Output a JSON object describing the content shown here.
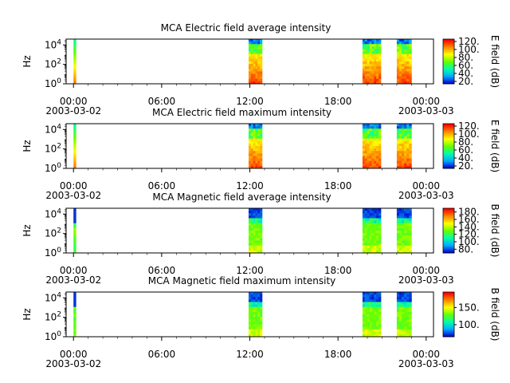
{
  "chart_data": [
    {
      "type": "heatmap",
      "title": "MCA  Electric field average intensity",
      "ylabel": "Hz",
      "y_scale": "log",
      "y_ticks": [
        "10^0",
        "10^2",
        "10^4"
      ],
      "x_ticks": [
        "00:00",
        "06:00",
        "12:00",
        "18:00",
        "00:00"
      ],
      "x_date_labels": [
        "2003-03-02",
        "2003-03-03"
      ],
      "x_range": [
        "2003-03-01T23:30",
        "2003-03-03T00:30"
      ],
      "colorbar_label": "E field (dB)",
      "colorbar_ticks": [
        "20.",
        "40.",
        "60.",
        "80.",
        "100.",
        "120."
      ],
      "colorbar_range": [
        14,
        126
      ],
      "data_segments": [
        {
          "start": "2003-03-02T00:00",
          "end": "2003-03-02T00:07"
        },
        {
          "start": "2003-03-02T11:55",
          "end": "2003-03-02T12:50"
        },
        {
          "start": "2003-03-02T19:40",
          "end": "2003-03-02T20:55"
        },
        {
          "start": "2003-03-02T22:00",
          "end": "2003-03-02T23:00"
        }
      ],
      "colormap": [
        "#0000cc",
        "#00aaff",
        "#00ffaa",
        "#66ff00",
        "#ffff00",
        "#ff8800",
        "#ff0000"
      ]
    },
    {
      "type": "heatmap",
      "title": "MCA  Electric field maximum intensity",
      "ylabel": "Hz",
      "y_scale": "log",
      "y_ticks": [
        "10^0",
        "10^2",
        "10^4"
      ],
      "x_ticks": [
        "00:00",
        "06:00",
        "12:00",
        "18:00",
        "00:00"
      ],
      "x_date_labels": [
        "2003-03-02",
        "2003-03-03"
      ],
      "x_range": [
        "2003-03-01T23:30",
        "2003-03-03T00:30"
      ],
      "colorbar_label": "E field (dB)",
      "colorbar_ticks": [
        "20.",
        "40.",
        "60.",
        "80.",
        "100.",
        "120."
      ],
      "colorbar_range": [
        14,
        126
      ],
      "data_segments": [
        {
          "start": "2003-03-02T00:00",
          "end": "2003-03-02T00:07"
        },
        {
          "start": "2003-03-02T11:55",
          "end": "2003-03-02T12:50"
        },
        {
          "start": "2003-03-02T19:40",
          "end": "2003-03-02T20:55"
        },
        {
          "start": "2003-03-02T22:00",
          "end": "2003-03-02T23:00"
        }
      ],
      "colormap": [
        "#0000cc",
        "#00aaff",
        "#00ffaa",
        "#66ff00",
        "#ffff00",
        "#ff8800",
        "#ff0000"
      ]
    },
    {
      "type": "heatmap",
      "title": "MCA  Magnetic field average intensity",
      "ylabel": "Hz",
      "y_scale": "log",
      "y_ticks": [
        "10^0",
        "10^2",
        "10^4"
      ],
      "x_ticks": [
        "00:00",
        "06:00",
        "12:00",
        "18:00",
        "00:00"
      ],
      "x_date_labels": [
        "2003-03-02",
        "2003-03-03"
      ],
      "x_range": [
        "2003-03-01T23:30",
        "2003-03-03T00:30"
      ],
      "colorbar_label": "B field (dB)",
      "colorbar_ticks": [
        "80.",
        "100.",
        "120.",
        "140.",
        "160.",
        "180."
      ],
      "colorbar_range": [
        70,
        190
      ],
      "data_segments": [
        {
          "start": "2003-03-02T00:00",
          "end": "2003-03-02T00:07"
        },
        {
          "start": "2003-03-02T11:55",
          "end": "2003-03-02T12:50"
        },
        {
          "start": "2003-03-02T19:40",
          "end": "2003-03-02T20:55"
        },
        {
          "start": "2003-03-02T22:00",
          "end": "2003-03-02T23:00"
        }
      ],
      "colormap": [
        "#0000cc",
        "#00aaff",
        "#00ffaa",
        "#66ff00",
        "#ffff00",
        "#ff8800",
        "#ff0000"
      ]
    },
    {
      "type": "heatmap",
      "title": "MCA  Magnetic field maximum intensity",
      "ylabel": "Hz",
      "y_scale": "log",
      "y_ticks": [
        "10^0",
        "10^2",
        "10^4"
      ],
      "x_ticks": [
        "00:00",
        "06:00",
        "12:00",
        "18:00",
        "00:00"
      ],
      "x_date_labels": [
        "2003-03-02",
        "2003-03-03"
      ],
      "x_range": [
        "2003-03-01T23:30",
        "2003-03-03T00:30"
      ],
      "colorbar_label": "B field (dB)",
      "colorbar_ticks": [
        "100.",
        "150."
      ],
      "colorbar_range": [
        65,
        195
      ],
      "data_segments": [
        {
          "start": "2003-03-02T00:00",
          "end": "2003-03-02T00:07"
        },
        {
          "start": "2003-03-02T11:55",
          "end": "2003-03-02T12:50"
        },
        {
          "start": "2003-03-02T19:40",
          "end": "2003-03-02T20:55"
        },
        {
          "start": "2003-03-02T22:00",
          "end": "2003-03-02T23:00"
        }
      ],
      "colormap": [
        "#0000cc",
        "#00aaff",
        "#00ffaa",
        "#66ff00",
        "#ffff00",
        "#ff8800",
        "#ff0000"
      ]
    }
  ]
}
